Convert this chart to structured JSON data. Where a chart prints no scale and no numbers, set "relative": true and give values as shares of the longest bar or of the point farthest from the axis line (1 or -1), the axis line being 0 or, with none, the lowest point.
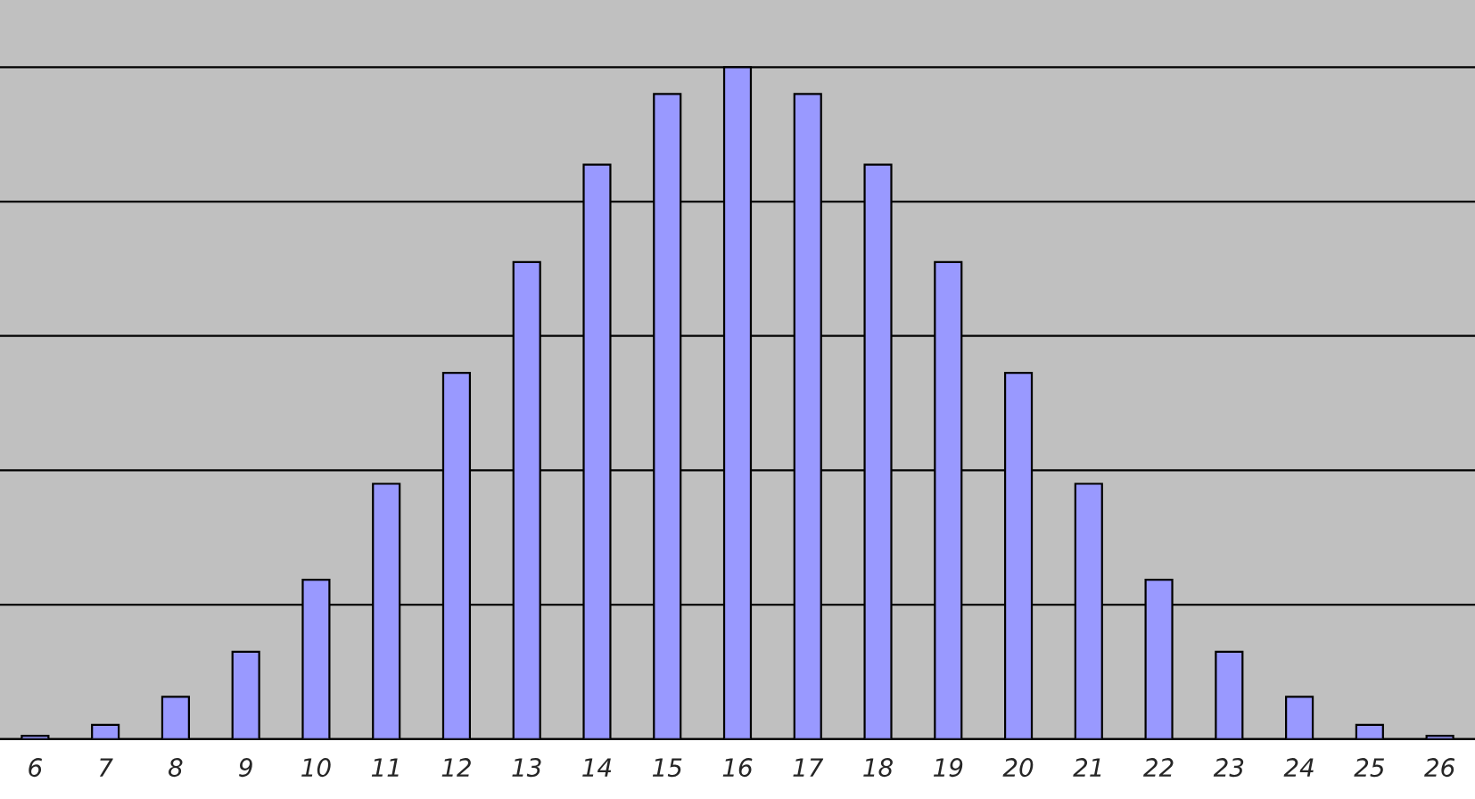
{
  "chart_data": {
    "type": "bar",
    "relative": true,
    "categories": [
      "6",
      "7",
      "8",
      "9",
      "10",
      "11",
      "12",
      "13",
      "14",
      "15",
      "16",
      "17",
      "18",
      "19",
      "20",
      "21",
      "22",
      "23",
      "24",
      "25",
      "26"
    ],
    "values": [
      0.005,
      0.021,
      0.063,
      0.13,
      0.237,
      0.38,
      0.545,
      0.71,
      0.855,
      0.96,
      1,
      0.96,
      0.855,
      0.71,
      0.545,
      0.38,
      0.237,
      0.13,
      0.063,
      0.021,
      0.005
    ],
    "color": "#9999ff",
    "grid": "y",
    "legend": false
  }
}
